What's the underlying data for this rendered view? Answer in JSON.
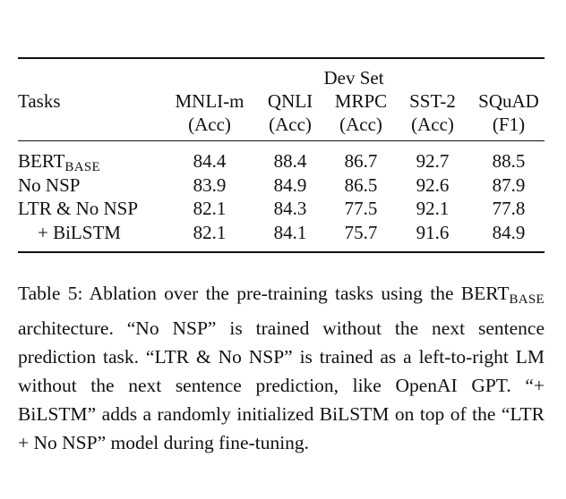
{
  "table": {
    "dev_set_header": "Dev Set",
    "tasks_header": "Tasks",
    "columns": [
      {
        "name": "MNLI-m",
        "metric": "(Acc)"
      },
      {
        "name": "QNLI",
        "metric": "(Acc)"
      },
      {
        "name": "MRPC",
        "metric": "(Acc)"
      },
      {
        "name": "SST-2",
        "metric": "(Acc)"
      },
      {
        "name": "SQuAD",
        "metric": "(F1)"
      }
    ],
    "rows": [
      {
        "label": "BERT",
        "label_sub": "BASE",
        "values": [
          "84.4",
          "88.4",
          "86.7",
          "92.7",
          "88.5"
        ]
      },
      {
        "label": "No NSP",
        "values": [
          "83.9",
          "84.9",
          "86.5",
          "92.6",
          "87.9"
        ]
      },
      {
        "label": "LTR & No NSP",
        "values": [
          "82.1",
          "84.3",
          "77.5",
          "92.1",
          "77.8"
        ]
      },
      {
        "label": "+ BiLSTM",
        "values": [
          "82.1",
          "84.1",
          "75.7",
          "91.6",
          "84.9"
        ]
      }
    ]
  },
  "caption": {
    "part1": "Table 5: Ablation over the pre-training tasks using the BERT",
    "sub": "BASE",
    "part2": " architecture. “No NSP” is trained without the next sentence prediction task. “LTR & No NSP” is trained as a left-to-right LM without the next sentence prediction, like OpenAI GPT. “+ BiLSTM” adds a randomly initialized BiLSTM on top of the “LTR + No NSP” model during fine-tuning."
  }
}
